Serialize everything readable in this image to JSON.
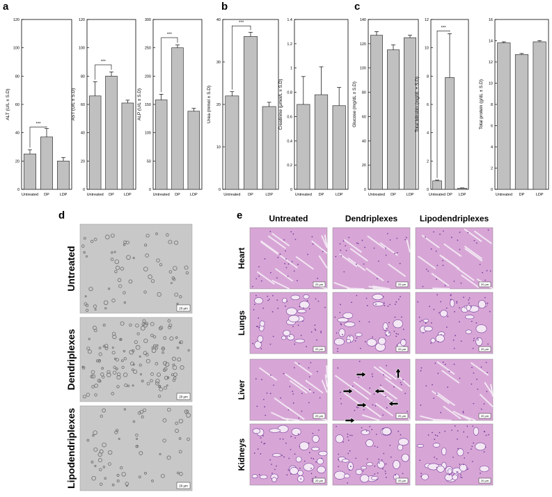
{
  "colors": {
    "bar": "#c0c0c0",
    "bar_stroke": "#333333",
    "he_pink": "#d7a6d6",
    "he_purple": "#7b3f9e",
    "cell_bg": "#c8c8c8",
    "cell_dot": "#6e6e6e"
  },
  "panel_letters": {
    "a": "a",
    "b": "b",
    "c": "c",
    "d": "d",
    "e": "e"
  },
  "significance": "***",
  "chart_data": [
    {
      "type": "bar",
      "panel": "a",
      "categories": [
        "Untreated",
        "DP",
        "LDP"
      ],
      "values": [
        25,
        37,
        20
      ],
      "errors": [
        3,
        6,
        2.5
      ],
      "ylabel": "ALT (U/L ± S.D)",
      "ylim": [
        0,
        120
      ],
      "yticks": [
        0,
        20,
        40,
        60,
        80,
        100,
        120
      ],
      "sig_pair": [
        0,
        1
      ],
      "sig_y": 44
    },
    {
      "type": "bar",
      "panel": "a",
      "categories": [
        "Untreated",
        "DP",
        "LDP"
      ],
      "values": [
        66,
        80,
        61
      ],
      "errors": [
        10,
        3,
        2
      ],
      "ylabel": "AST (U/L ± S.D)",
      "ylim": [
        0,
        120
      ],
      "yticks": [
        0,
        20,
        40,
        60,
        80,
        100,
        120
      ],
      "sig_pair": [
        0,
        1
      ],
      "sig_y": 88
    },
    {
      "type": "bar",
      "panel": "a",
      "categories": [
        "Untreated",
        "DP",
        "LDP"
      ],
      "values": [
        158,
        250,
        138
      ],
      "errors": [
        10,
        5,
        5
      ],
      "ylabel": "ALP (U/L ± S.D)",
      "ylim": [
        0,
        300
      ],
      "yticks": [
        0,
        50,
        100,
        150,
        200,
        250,
        300
      ],
      "sig_pair": [
        0,
        1
      ],
      "sig_y": 268
    },
    {
      "type": "bar",
      "panel": "b",
      "categories": [
        "Untreated",
        "DP",
        "LDP"
      ],
      "values": [
        22,
        36,
        19.5
      ],
      "errors": [
        1,
        1,
        1
      ],
      "ylabel": "Urea (mmol ± S.D)",
      "ylim": [
        0,
        40
      ],
      "yticks": [
        0,
        10,
        20,
        30,
        40
      ],
      "sig_pair": [
        0,
        1
      ],
      "sig_y": 38.5
    },
    {
      "type": "bar",
      "panel": "b",
      "categories": [
        "Untreated",
        "DP",
        "LDP"
      ],
      "values": [
        0.7,
        0.78,
        0.69
      ],
      "errors": [
        0.23,
        0.23,
        0.15
      ],
      "ylabel": "Creatinine (μmol/L ± S.D)",
      "ylim": [
        0,
        1.4
      ],
      "yticks": [
        0,
        0.2,
        0.4,
        0.6,
        0.8,
        1.0,
        1.2,
        1.4
      ]
    },
    {
      "type": "bar",
      "panel": "c",
      "categories": [
        "Untreated",
        "DP",
        "LDP"
      ],
      "values": [
        127,
        115,
        125
      ],
      "errors": [
        3,
        4,
        2
      ],
      "ylabel": "Glucose (mg/dL ± S.D)",
      "ylim": [
        0,
        140
      ],
      "yticks": [
        0,
        20,
        40,
        60,
        80,
        100,
        120,
        140
      ]
    },
    {
      "type": "bar",
      "panel": "c",
      "categories": [
        "Untreated",
        "DP",
        "LDP"
      ],
      "values": [
        0.6,
        7.9,
        0.08
      ],
      "errors": [
        0.05,
        3.1,
        0.02
      ],
      "ylabel": "Total bilirubin (mg/dL ± S.D)",
      "ylim": [
        0,
        12
      ],
      "yticks": [
        0,
        2,
        4,
        6,
        8,
        10,
        12
      ],
      "sig_pair": [
        0,
        1
      ],
      "sig_y": 11.2
    },
    {
      "type": "bar",
      "panel": "c",
      "categories": [
        "Untreated",
        "DP",
        "LDP"
      ],
      "values": [
        13.8,
        12.7,
        13.9
      ],
      "errors": [
        0.1,
        0.1,
        0.1
      ],
      "ylabel": "Total protein (g/dL ± S.D)",
      "ylim": [
        0,
        16
      ],
      "yticks": [
        0,
        2,
        4,
        6,
        8,
        10,
        12,
        14,
        16
      ]
    }
  ],
  "panel_d": {
    "rows": [
      "Untreated",
      "Dendriplexes",
      "Lipodendriplexes"
    ],
    "scale_bar": "20 μm"
  },
  "panel_e": {
    "columns": [
      "Untreated",
      "Dendriplexes",
      "Lipodendriplexes"
    ],
    "rows": [
      "Heart",
      "Lungs",
      "Liver",
      "Kidneys"
    ],
    "scale_bar": "20 μm"
  }
}
